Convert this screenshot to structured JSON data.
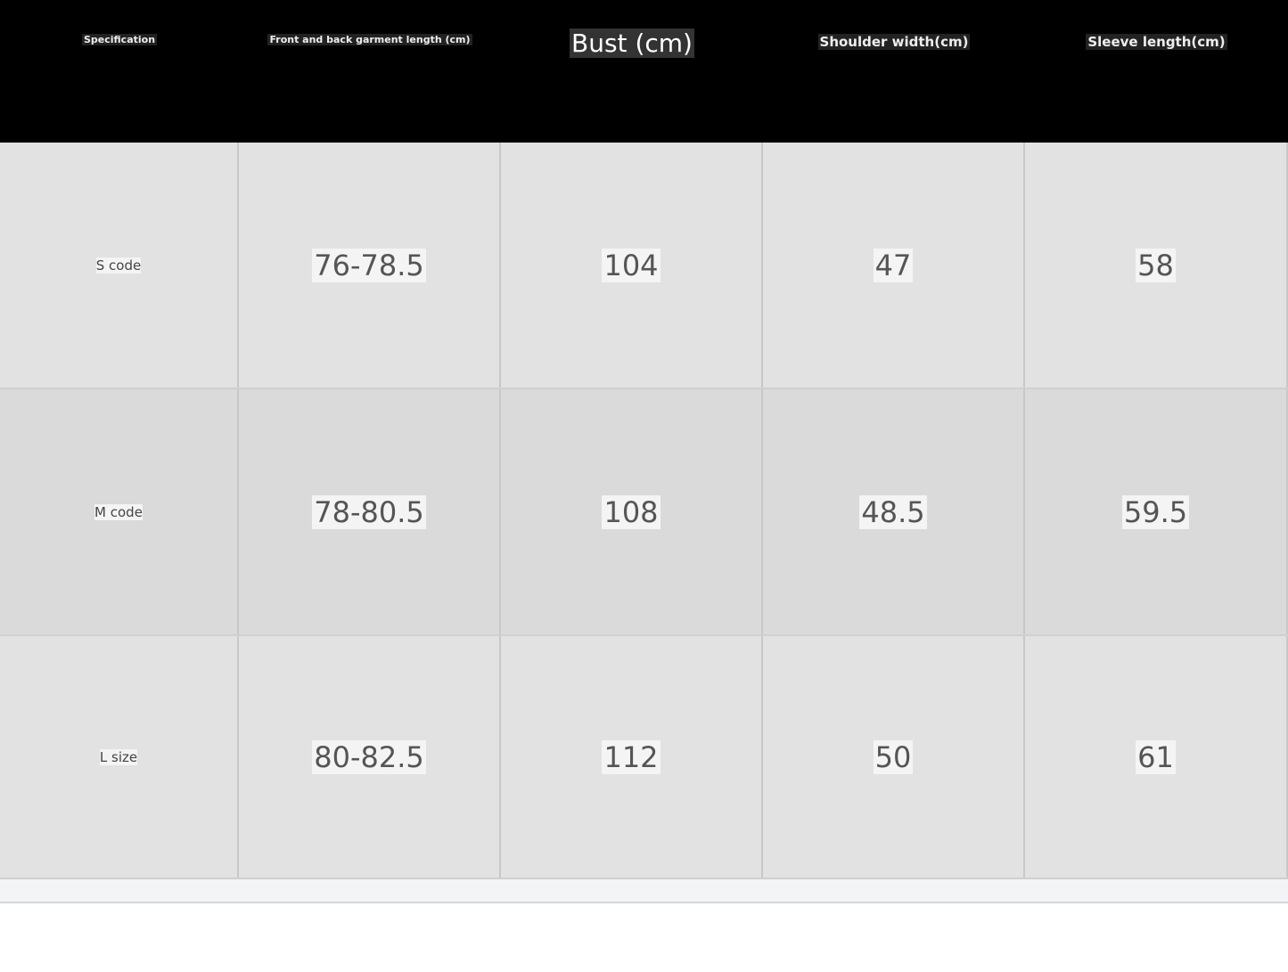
{
  "size_chart": {
    "headers": [
      "Specification",
      "Front and back garment length (cm)",
      "Bust (cm)",
      "Shoulder width(cm)",
      "Sleeve length(cm)"
    ],
    "rows": [
      {
        "size": "S code",
        "values": [
          "76-78.5",
          "104",
          "47",
          "58"
        ]
      },
      {
        "size": "M code",
        "values": [
          "78-80.5",
          "108",
          "48.5",
          "59.5"
        ]
      },
      {
        "size": "L size",
        "values": [
          "80-82.5",
          "112",
          "50",
          "61"
        ]
      }
    ]
  },
  "colors": {
    "header_bg": "#000000",
    "row_bg": "#e2e2e2",
    "row_alt_bg": "#dadada"
  }
}
